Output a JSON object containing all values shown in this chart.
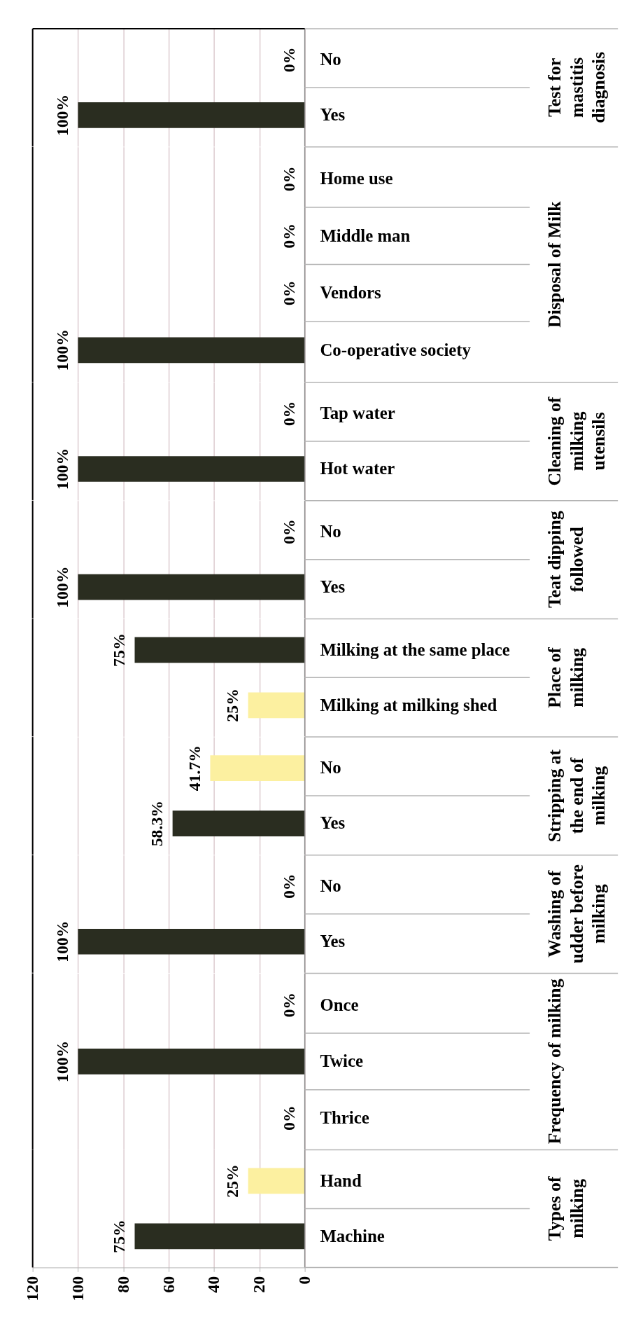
{
  "chart_data": [
    {
      "type": "bar",
      "orientation": "horizontal",
      "categories": [
        "No",
        "Yes"
      ],
      "values": [
        0,
        100
      ],
      "colors": [
        "#2a2d20",
        "#2a2d20"
      ],
      "value_labels": [
        "0%",
        "100%"
      ],
      "ylabel": "Test for\nmastitis\ndiagnosis",
      "xlim": [
        120,
        0
      ],
      "xticks": [
        0,
        20,
        40,
        60,
        80,
        100,
        120
      ],
      "grid": "x",
      "tick_labels": "y"
    },
    {
      "type": "bar",
      "orientation": "horizontal",
      "categories": [
        "Home use",
        "Middle man",
        "Vendors",
        "Co-operative society"
      ],
      "values": [
        0,
        0,
        0,
        100
      ],
      "colors": [
        "#2a2d20",
        "#2a2d20",
        "#2a2d20",
        "#2a2d20"
      ],
      "value_labels": [
        "0%",
        "0%",
        "0%",
        "100%"
      ],
      "ylabel": "Disposal of Milk",
      "xlim": [
        120,
        0
      ],
      "xticks": [
        0,
        20,
        40,
        60,
        80,
        100,
        120
      ],
      "grid": "x",
      "tick_labels": "y"
    },
    {
      "type": "bar",
      "orientation": "horizontal",
      "categories": [
        "Tap water",
        "Hot water"
      ],
      "values": [
        0,
        100
      ],
      "colors": [
        "#2a2d20",
        "#2a2d20"
      ],
      "value_labels": [
        "0%",
        "100%"
      ],
      "ylabel": "Cleaning of\nmilking\nutensils",
      "xlim": [
        120,
        0
      ],
      "xticks": [
        0,
        20,
        40,
        60,
        80,
        100,
        120
      ],
      "grid": "x",
      "tick_labels": "y"
    },
    {
      "type": "bar",
      "orientation": "horizontal",
      "categories": [
        "No",
        "Yes"
      ],
      "values": [
        0,
        100
      ],
      "colors": [
        "#2a2d20",
        "#2a2d20"
      ],
      "value_labels": [
        "0%",
        "100%"
      ],
      "ylabel": "Teat dipping\nfollowed",
      "xlim": [
        120,
        0
      ],
      "xticks": [
        0,
        20,
        40,
        60,
        80,
        100,
        120
      ],
      "grid": "x",
      "tick_labels": "y"
    },
    {
      "type": "bar",
      "orientation": "horizontal",
      "categories": [
        "Milking at the same place",
        "Milking at milking shed"
      ],
      "values": [
        75,
        25
      ],
      "colors": [
        "#2a2d20",
        "#fcf0a0"
      ],
      "value_labels": [
        "75%",
        "25%"
      ],
      "ylabel": "Place of\nmilking",
      "xlim": [
        120,
        0
      ],
      "xticks": [
        0,
        20,
        40,
        60,
        80,
        100,
        120
      ],
      "grid": "x",
      "tick_labels": "y"
    },
    {
      "type": "bar",
      "orientation": "horizontal",
      "categories": [
        "No",
        "Yes"
      ],
      "values": [
        41.7,
        58.3
      ],
      "colors": [
        "#fcf0a0",
        "#2a2d20"
      ],
      "value_labels": [
        "41.7%",
        "58.3%"
      ],
      "ylabel": "Stripping at\nthe end of\nmilking",
      "xlim": [
        120,
        0
      ],
      "xticks": [
        0,
        20,
        40,
        60,
        80,
        100,
        120
      ],
      "grid": "x",
      "tick_labels": "y"
    },
    {
      "type": "bar",
      "orientation": "horizontal",
      "categories": [
        "No",
        "Yes"
      ],
      "values": [
        0,
        100
      ],
      "colors": [
        "#2a2d20",
        "#2a2d20"
      ],
      "value_labels": [
        "0%",
        "100%"
      ],
      "ylabel": "Washing of\nudder before\nmilking",
      "xlim": [
        120,
        0
      ],
      "xticks": [
        0,
        20,
        40,
        60,
        80,
        100,
        120
      ],
      "grid": "x",
      "tick_labels": "y"
    },
    {
      "type": "bar",
      "orientation": "horizontal",
      "categories": [
        "Once",
        "Twice",
        "Thrice"
      ],
      "values": [
        0,
        100,
        0
      ],
      "colors": [
        "#2a2d20",
        "#2a2d20",
        "#2a2d20"
      ],
      "value_labels": [
        "0%",
        "100%",
        "0%"
      ],
      "ylabel": "Frequency of milking",
      "xlim": [
        120,
        0
      ],
      "xticks": [
        0,
        20,
        40,
        60,
        80,
        100,
        120
      ],
      "grid": "x",
      "tick_labels": "y"
    },
    {
      "type": "bar",
      "orientation": "horizontal",
      "categories": [
        "Hand",
        "Machine"
      ],
      "values": [
        25,
        75
      ],
      "colors": [
        "#fcf0a0",
        "#2a2d20"
      ],
      "value_labels": [
        "25%",
        "75%"
      ],
      "ylabel": "Types of\nmilking",
      "xlim": [
        120,
        0
      ],
      "xticks": [
        0,
        20,
        40,
        60,
        80,
        100,
        120
      ],
      "grid": "x"
    }
  ]
}
